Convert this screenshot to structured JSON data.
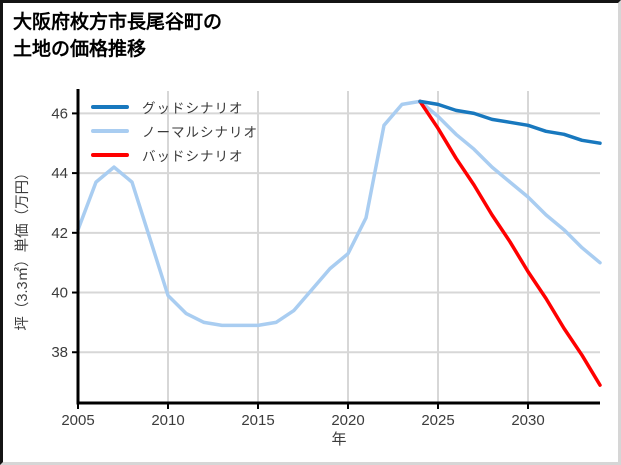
{
  "title": {
    "line1": "大阪府枚方市長尾谷町の",
    "line2": "土地の価格推移"
  },
  "chart_data": {
    "type": "line",
    "title": "大阪府枚方市長尾谷町の土地の価格推移",
    "xlabel": "年",
    "ylabel": "坪（3.3㎡）単価（万円）",
    "xlim": [
      2005,
      2034
    ],
    "ylim": [
      36.3,
      46.75
    ],
    "grid": true,
    "legend_position": "upper left",
    "x_ticks": [
      2005,
      2010,
      2015,
      2020,
      2025,
      2030
    ],
    "y_ticks": [
      38,
      40,
      42,
      44,
      46
    ],
    "grid_color": "#d7d7d7",
    "axis_color": "#000000",
    "tick_label_color": "#3c3c3c",
    "series": [
      {
        "name": "グッドシナリオ",
        "color": "#1878be",
        "x": [
          2024,
          2025,
          2026,
          2027,
          2028,
          2029,
          2030,
          2031,
          2032,
          2033,
          2034
        ],
        "y": [
          46.4,
          46.3,
          46.1,
          46.0,
          45.8,
          45.7,
          45.6,
          45.4,
          45.3,
          45.1,
          45.0
        ]
      },
      {
        "name": "ノーマルシナリオ",
        "color": "#a9cdf1",
        "x": [
          2005,
          2006,
          2007,
          2008,
          2009,
          2010,
          2011,
          2012,
          2013,
          2014,
          2015,
          2016,
          2017,
          2018,
          2019,
          2020,
          2021,
          2022,
          2023,
          2024,
          2025,
          2026,
          2027,
          2028,
          2029,
          2030,
          2031,
          2032,
          2033,
          2034
        ],
        "y": [
          42.1,
          43.7,
          44.2,
          43.7,
          41.8,
          39.9,
          39.3,
          39.0,
          38.9,
          38.9,
          38.9,
          39.0,
          39.4,
          40.1,
          40.8,
          41.3,
          42.5,
          45.6,
          46.3,
          46.4,
          45.9,
          45.3,
          44.8,
          44.2,
          43.7,
          43.2,
          42.6,
          42.1,
          41.5,
          41.0
        ]
      },
      {
        "name": "バッドシナリオ",
        "color": "#ff0000",
        "x": [
          2024,
          2025,
          2026,
          2027,
          2028,
          2029,
          2030,
          2031,
          2032,
          2033,
          2034
        ],
        "y": [
          46.4,
          45.5,
          44.5,
          43.6,
          42.6,
          41.7,
          40.7,
          39.8,
          38.8,
          37.9,
          36.9
        ]
      }
    ]
  }
}
